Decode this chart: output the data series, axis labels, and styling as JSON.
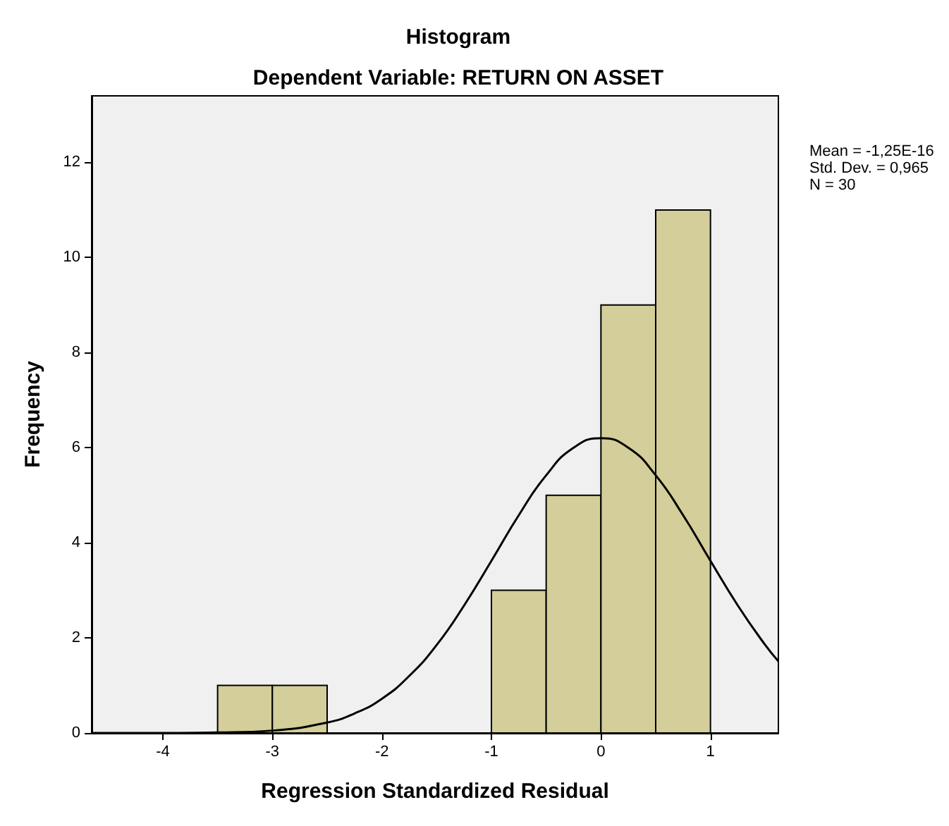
{
  "chart_data": {
    "type": "histogram",
    "title": "Histogram",
    "subtitle": "Dependent Variable: RETURN ON ASSET",
    "xlabel": "Regression Standardized Residual",
    "ylabel": "Frequency",
    "bins": [
      -3.5,
      -3,
      -2.5,
      -2,
      -1.5,
      -1,
      -0.5,
      0,
      0.5,
      1
    ],
    "values": [
      1,
      1,
      0,
      0,
      0,
      3,
      5,
      9,
      11
    ],
    "color": "#d3ce9a",
    "series": [
      {
        "type": "line",
        "color": "#000000",
        "x": [
          -4.65,
          -4,
          -3.5,
          -3,
          -2.5,
          -2.25,
          -2,
          -1.75,
          -1.5,
          -1.25,
          -1,
          -0.75,
          -0.5,
          -0.25,
          0,
          0.25,
          0.5,
          0.75,
          1,
          1.25,
          1.5,
          1.62
        ],
        "values": [
          0,
          0,
          0.01,
          0.05,
          0.22,
          0.41,
          0.72,
          1.2,
          1.85,
          2.68,
          3.62,
          4.58,
          5.42,
          6.0,
          6.2,
          6.0,
          5.42,
          4.58,
          3.62,
          2.68,
          1.85,
          1.51
        ]
      }
    ],
    "xlim": [
      -4.65,
      1.62
    ],
    "xticks": [
      -4,
      -3,
      -2,
      -1,
      0,
      1
    ],
    "ylim": [
      0,
      13.4
    ],
    "yticks": [
      0,
      2,
      4,
      6,
      8,
      10,
      12
    ],
    "grid": false,
    "marker": "none",
    "line_style": "solid",
    "annotations": [
      "Mean = -1,25E-16",
      "Std. Dev. = 0,965",
      "N = 30"
    ]
  }
}
